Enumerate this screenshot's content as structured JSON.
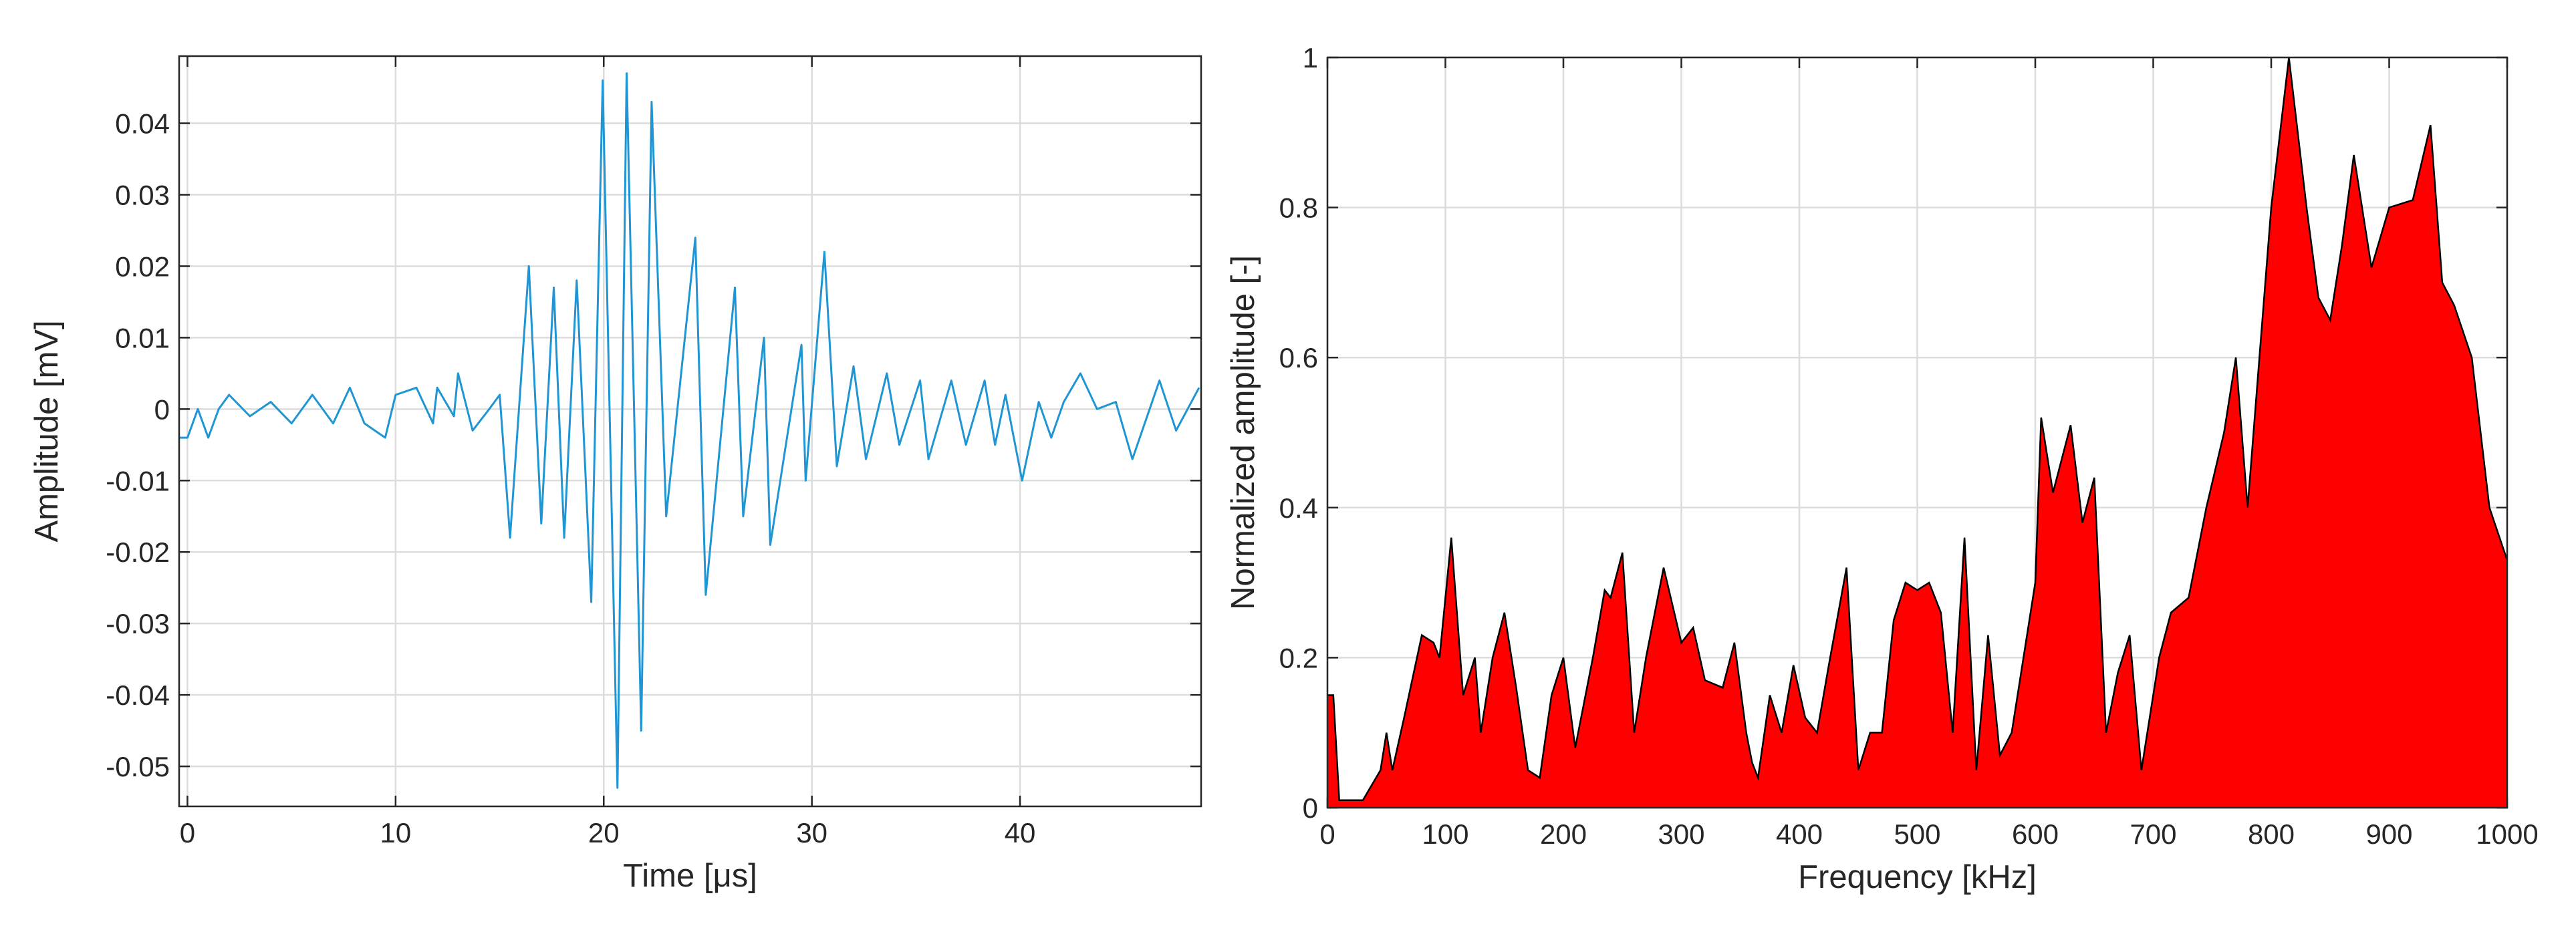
{
  "chart_data": [
    {
      "type": "line",
      "xlabel": "Time [μs]",
      "ylabel": "Amplitude [mV]",
      "color": "#1f96d3",
      "grid": true,
      "xlim": [
        -0.4,
        48.7
      ],
      "ylim": [
        -0.0556,
        0.0494
      ],
      "xticks": [
        0,
        10,
        20,
        30,
        40
      ],
      "yticks": [
        -0.05,
        -0.04,
        -0.03,
        -0.02,
        -0.01,
        0,
        0.01,
        0.02,
        0.03,
        0.04
      ],
      "x": [
        -0.4,
        0,
        0.5,
        1,
        1.5,
        2,
        3,
        4,
        5,
        6,
        7,
        7.8,
        8.5,
        9.5,
        10,
        11,
        11.8,
        12,
        12.8,
        13,
        13.7,
        14.5,
        15,
        15.5,
        16.4,
        17,
        17.6,
        18.1,
        18.7,
        19.4,
        19.95,
        20.66,
        21.1,
        21.8,
        22.3,
        23.0,
        24.4,
        24.9,
        26.3,
        26.7,
        27.7,
        28.0,
        29.5,
        29.7,
        30.6,
        31.2,
        32,
        32.6,
        33.6,
        34.2,
        35.2,
        35.6,
        36.7,
        37.4,
        38.3,
        38.8,
        39.3,
        40.1,
        40.9,
        41.5,
        42.1,
        42.9,
        43.7,
        44.6,
        45.4,
        46.7,
        47.5,
        48.6
      ],
      "values": [
        -0.004,
        -0.004,
        0,
        -0.004,
        0,
        0.002,
        -0.001,
        0.001,
        -0.002,
        0.002,
        -0.002,
        0.003,
        -0.002,
        -0.004,
        0.002,
        0.003,
        -0.002,
        0.003,
        -0.001,
        0.005,
        -0.003,
        0,
        0.002,
        -0.018,
        0.02,
        -0.016,
        0.017,
        -0.018,
        0.018,
        -0.027,
        0.046,
        -0.053,
        0.047,
        -0.045,
        0.043,
        -0.015,
        0.024,
        -0.026,
        0.017,
        -0.015,
        0.01,
        -0.019,
        0.009,
        -0.01,
        0.022,
        -0.008,
        0.006,
        -0.007,
        0.005,
        -0.005,
        0.004,
        -0.007,
        0.004,
        -0.005,
        0.004,
        -0.005,
        0.002,
        -0.01,
        0.001,
        -0.004,
        0.001,
        0.005,
        0,
        0.001,
        -0.007,
        0.004,
        -0.003,
        0.003
      ]
    },
    {
      "type": "area",
      "xlabel": "Frequency [kHz]",
      "ylabel": "Normalized amplitude [-]",
      "color": "#ff0000",
      "grid": true,
      "xlim": [
        0,
        1000
      ],
      "ylim": [
        0,
        1
      ],
      "xticks": [
        0,
        100,
        200,
        300,
        400,
        500,
        600,
        700,
        800,
        900,
        1000
      ],
      "yticks": [
        0,
        0.2,
        0.4,
        0.6,
        0.8,
        1
      ],
      "x": [
        0,
        5,
        10,
        30,
        45,
        50,
        55,
        65,
        80,
        90,
        95,
        105,
        115,
        125,
        130,
        140,
        150,
        160,
        170,
        180,
        190,
        200,
        210,
        225,
        235,
        240,
        250,
        260,
        270,
        285,
        300,
        310,
        320,
        335,
        345,
        355,
        360,
        365,
        375,
        385,
        395,
        405,
        415,
        425,
        440,
        450,
        460,
        470,
        480,
        490,
        500,
        510,
        520,
        530,
        540,
        550,
        560,
        570,
        580,
        600,
        605,
        615,
        630,
        640,
        650,
        660,
        670,
        680,
        690,
        705,
        715,
        730,
        745,
        760,
        770,
        780,
        800,
        815,
        830,
        840,
        850,
        860,
        870,
        885,
        900,
        920,
        935,
        945,
        955,
        970,
        985,
        1000
      ],
      "values": [
        0.15,
        0.15,
        0.01,
        0.01,
        0.05,
        0.1,
        0.05,
        0.12,
        0.23,
        0.22,
        0.2,
        0.36,
        0.15,
        0.2,
        0.1,
        0.2,
        0.26,
        0.16,
        0.05,
        0.04,
        0.15,
        0.2,
        0.08,
        0.2,
        0.29,
        0.28,
        0.34,
        0.1,
        0.2,
        0.32,
        0.22,
        0.24,
        0.17,
        0.16,
        0.22,
        0.1,
        0.06,
        0.04,
        0.15,
        0.1,
        0.19,
        0.12,
        0.1,
        0.19,
        0.32,
        0.05,
        0.1,
        0.1,
        0.25,
        0.3,
        0.29,
        0.3,
        0.26,
        0.1,
        0.36,
        0.05,
        0.23,
        0.07,
        0.1,
        0.3,
        0.52,
        0.42,
        0.51,
        0.38,
        0.44,
        0.1,
        0.18,
        0.23,
        0.05,
        0.2,
        0.26,
        0.28,
        0.4,
        0.5,
        0.6,
        0.4,
        0.8,
        1,
        0.8,
        0.68,
        0.65,
        0.75,
        0.87,
        0.72,
        0.8,
        0.81,
        0.91,
        0.7,
        0.67,
        0.6,
        0.4,
        0.33
      ]
    }
  ]
}
